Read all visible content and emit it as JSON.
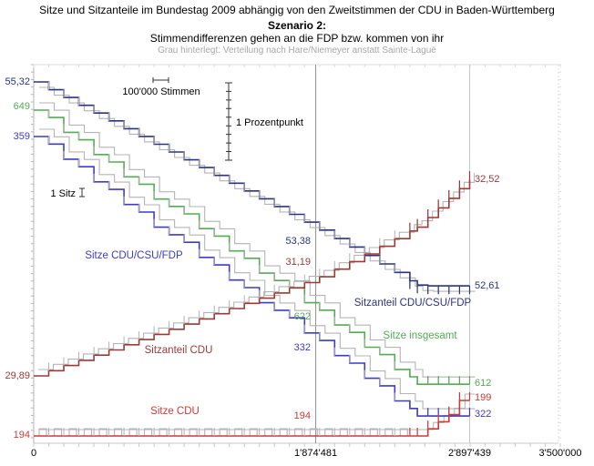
{
  "header": {
    "title": "Sitze und Sitzanteile im Bundestag 2009 abhängig von den Zweitstimmen der CDU in Baden-Württemberg",
    "scenario": "Szenario 2:",
    "scenario_detail": "Stimmendifferenzen gehen an die FDP bzw. kommen von ihr",
    "note": "Grau hinterlegt: Verteilung nach Hare/Niemeyer anstatt Sainte-Laguë"
  },
  "chart_data": {
    "type": "line",
    "subtype": "step",
    "title": "Sitze und Sitzanteile im Bundestag 2009 abhängig von den Zweitstimmen der CDU in Baden-Württemberg",
    "subtitle": "Szenario 2: Stimmendifferenzen gehen an die FDP bzw. kommen von ihr",
    "note": "Grau hinterlegt: Verteilung nach Hare/Niemeyer anstatt Sainte-Laguë",
    "xlabel": "Zweitstimmen der CDU in Baden-Württemberg",
    "x_range": [
      0,
      3500000
    ],
    "x_minor_tick_step": 100000,
    "x_ticks": [
      {
        "label": "0",
        "value": 0
      },
      {
        "label": "1'874'481",
        "value": 1874481
      },
      {
        "label": "2'897'439",
        "value": 2897439
      },
      {
        "label": "3'500'000",
        "value": 3500000
      }
    ],
    "reference_lines_x": [
      1874481,
      2897439
    ],
    "gray_color": "#b4b4b4",
    "legend": {
      "votes_scale": "100'000 Stimmen",
      "percent_scale": "1 Prozentpunkt",
      "seat_scale": "1 Sitz"
    },
    "series": [
      {
        "id": "sitzanteil_union_fdp",
        "name": "Sitzanteil CDU/CSU/FDP",
        "color": "#2b3380",
        "unit": "percent",
        "points": [
          {
            "x": 0,
            "y": 55.32
          },
          {
            "x": 1874481,
            "y": 53.38
          },
          {
            "x": 2560000,
            "y": 52.61
          },
          {
            "x": 2897439,
            "y": 52.61
          }
        ],
        "labels": {
          "start": "55,32",
          "mid": "53,38",
          "end": "52,61"
        }
      },
      {
        "id": "sitze_insgesamt",
        "name": "Sitze insgesamt",
        "color": "#55ab55",
        "unit": "seats",
        "points": [
          {
            "x": 0,
            "y": 649
          },
          {
            "x": 1874481,
            "y": 622
          },
          {
            "x": 2560000,
            "y": 612
          },
          {
            "x": 2897439,
            "y": 612
          }
        ],
        "labels": {
          "start": "649",
          "mid": "622",
          "end": "612"
        }
      },
      {
        "id": "sitze_union_fdp",
        "name": "Sitze CDU/CSU/FDP",
        "color": "#3c3cc8",
        "unit": "seats",
        "points": [
          {
            "x": 0,
            "y": 359
          },
          {
            "x": 1874481,
            "y": 332
          },
          {
            "x": 2560000,
            "y": 322
          },
          {
            "x": 2897439,
            "y": 322
          }
        ],
        "labels": {
          "start": "359",
          "mid": "332",
          "end": "322"
        }
      },
      {
        "id": "sitzanteil_cdu",
        "name": "Sitzanteil CDU",
        "color": "#9c3a38",
        "unit": "percent",
        "points": [
          {
            "x": 0,
            "y": 29.89
          },
          {
            "x": 1874481,
            "y": 31.19
          },
          {
            "x": 2550000,
            "y": 31.88
          },
          {
            "x": 2897439,
            "y": 32.52
          }
        ],
        "labels": {
          "start": "29,89",
          "mid": "31,19",
          "end": "32,52"
        }
      },
      {
        "id": "sitze_cdu",
        "name": "Sitze CDU",
        "color": "#cc3b39",
        "unit": "seats",
        "points": [
          {
            "x": 0,
            "y": 194
          },
          {
            "x": 2550000,
            "y": 194
          },
          {
            "x": 2860000,
            "y": 199
          },
          {
            "x": 2897439,
            "y": 199
          }
        ],
        "labels": {
          "start": "194",
          "mid": "194",
          "end": "199"
        }
      }
    ]
  }
}
